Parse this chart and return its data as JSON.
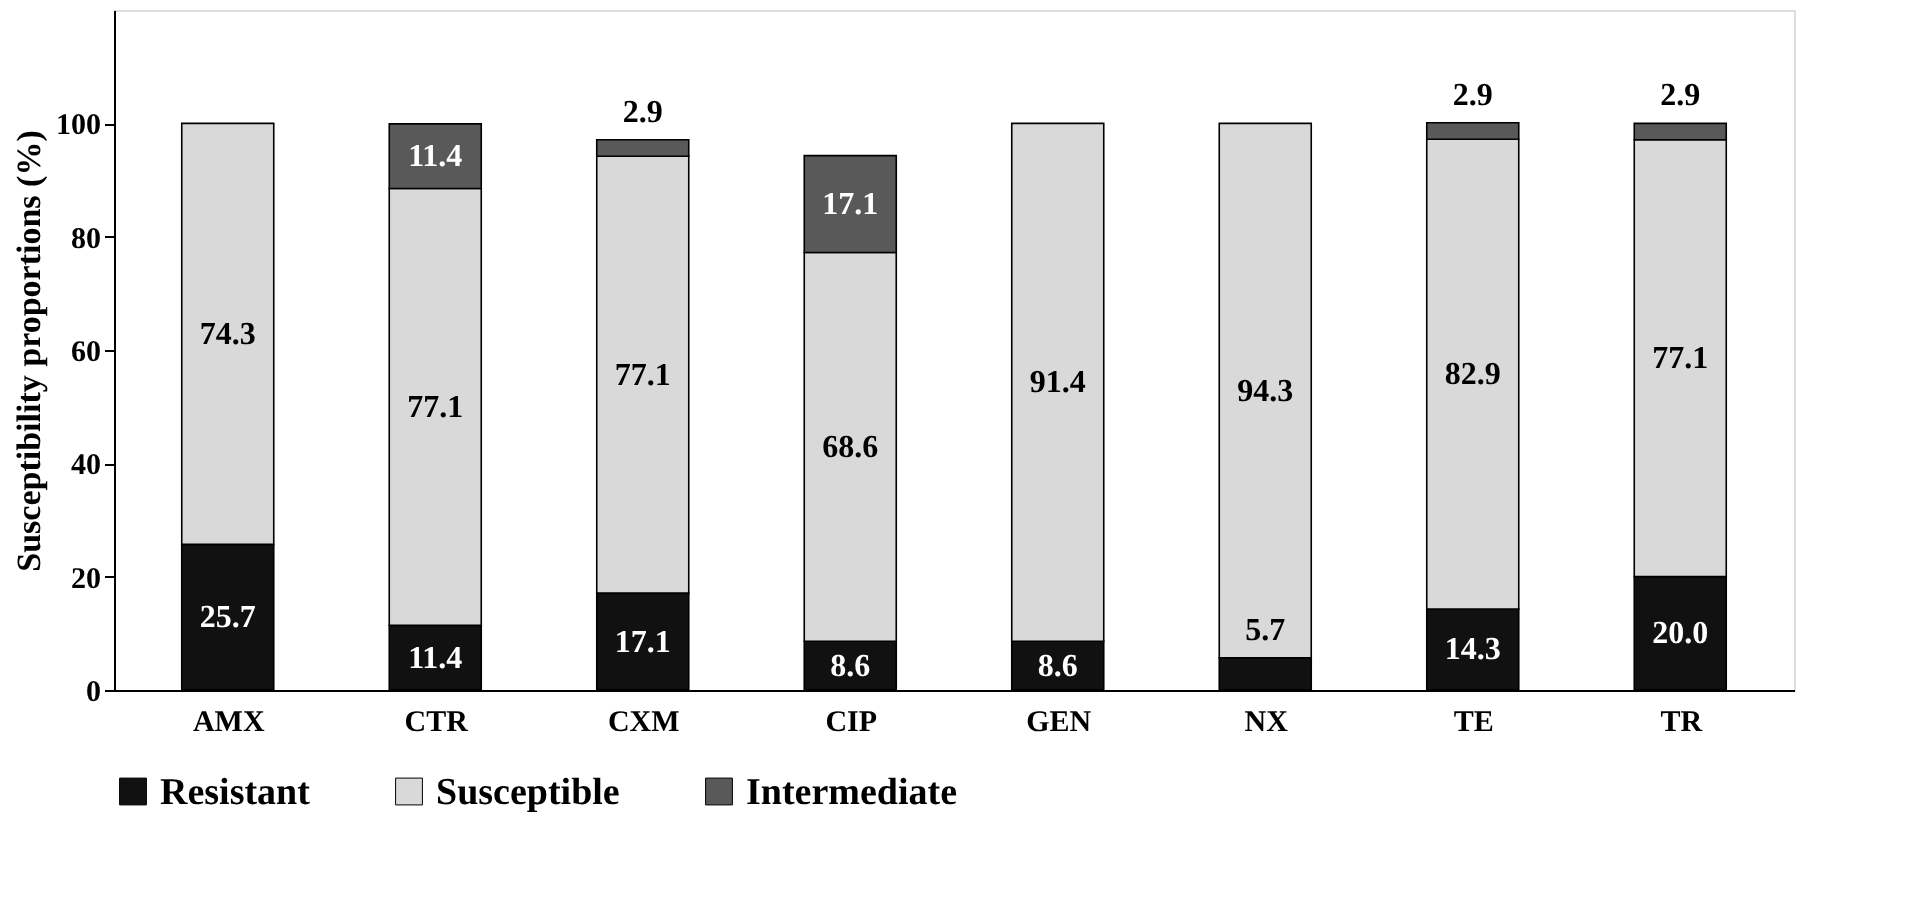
{
  "chart_data": {
    "type": "bar",
    "stacked": true,
    "ylabel": "Susceptibility proportions (%)",
    "categories": [
      "AMX",
      "CTR",
      "CXM",
      "CIP",
      "GEN",
      "NX",
      "TE",
      "TR"
    ],
    "series": [
      {
        "name": "Resistant",
        "color": "#111111",
        "values": [
          25.7,
          11.4,
          17.1,
          8.6,
          8.6,
          5.7,
          14.3,
          20.0
        ],
        "value_labels": [
          "25.7",
          "11.4",
          "17.1",
          "8.6",
          "8.6",
          "5.7",
          "14.3",
          "20.0"
        ]
      },
      {
        "name": "Susceptible",
        "color": "#d9d9d9",
        "values": [
          74.3,
          77.1,
          77.1,
          68.6,
          91.4,
          94.3,
          82.9,
          77.1
        ],
        "value_labels": [
          "74.3",
          "77.1",
          "77.1",
          "68.6",
          "91.4",
          "94.3",
          "82.9",
          "77.1"
        ]
      },
      {
        "name": "Intermediate",
        "color": "#595959",
        "values": [
          null,
          11.4,
          2.9,
          17.1,
          null,
          null,
          2.9,
          2.9
        ],
        "value_labels": [
          null,
          "11.4",
          "2.9",
          "17.1",
          null,
          null,
          "2.9",
          "2.9"
        ]
      }
    ],
    "ylim": [
      0,
      120
    ],
    "yticks": [
      0,
      20,
      40,
      60,
      80,
      100
    ],
    "grid": false,
    "legend": "bottom"
  }
}
